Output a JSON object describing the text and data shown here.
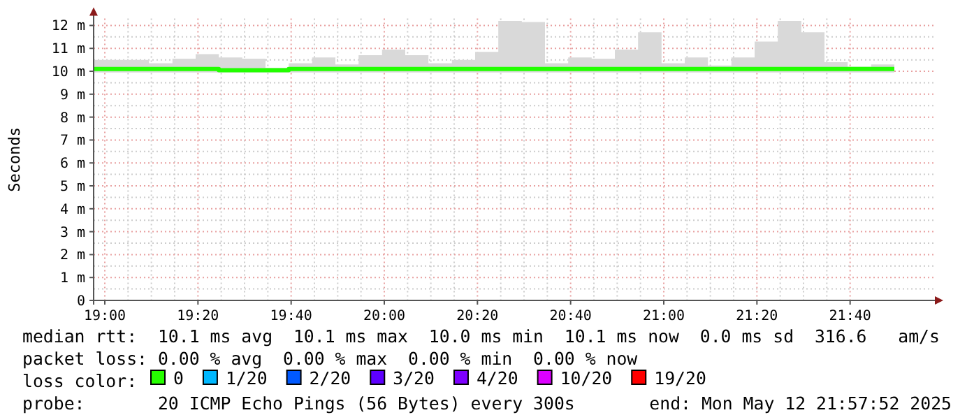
{
  "chart_data": {
    "type": "step",
    "ylabel": "Seconds",
    "x": [
      18.96,
      19.075,
      19.158,
      19.242,
      19.325,
      19.408,
      19.492,
      19.575,
      19.658,
      19.742,
      19.825,
      19.908,
      19.992,
      20.075,
      20.158,
      20.242,
      20.325,
      20.408,
      20.492,
      20.575,
      20.658,
      20.742,
      20.825,
      20.908,
      20.992,
      21.075,
      21.158,
      21.242,
      21.325,
      21.408,
      21.492,
      21.575,
      21.658,
      21.742,
      21.825
    ],
    "series": [
      {
        "color": "#22ff00",
        "values": [
          10.1,
          10.1,
          10.1,
          10.1,
          10.1,
          10.05,
          10.05,
          10.05,
          10.1,
          10.1,
          10.1,
          10.1,
          10.1,
          10.1,
          10.1,
          10.1,
          10.1,
          10.1,
          10.1,
          10.1,
          10.1,
          10.1,
          10.1,
          10.1,
          10.1,
          10.1,
          10.1,
          10.1,
          10.1,
          10.1,
          10.1,
          10.1,
          10.1,
          10.1,
          10.1
        ],
        "lower": [
          9.95,
          9.95,
          9.95,
          9.95,
          9.95,
          9.95,
          9.95,
          9.95,
          9.95,
          9.95,
          9.95,
          9.95,
          9.95,
          9.95,
          9.95,
          9.95,
          9.95,
          9.95,
          9.95,
          9.95,
          9.95,
          9.95,
          9.95,
          9.95,
          9.95,
          9.95,
          9.95,
          9.95,
          9.95,
          9.95,
          9.95,
          9.95,
          9.95,
          9.95,
          9.95
        ],
        "upper": [
          10.5,
          10.5,
          10.35,
          10.55,
          10.75,
          10.6,
          10.55,
          10.15,
          10.35,
          10.6,
          10.3,
          10.7,
          10.95,
          10.7,
          10.35,
          10.5,
          10.85,
          12.2,
          12.15,
          10.35,
          10.6,
          10.55,
          10.95,
          11.7,
          10.35,
          10.6,
          10.25,
          10.6,
          11.3,
          12.2,
          11.7,
          10.4,
          10.2,
          10.3,
          10.3
        ]
      }
    ],
    "xlim": [
      18.96,
      21.965
    ],
    "xticks": [
      {
        "value": 19,
        "label": "19:00"
      },
      {
        "value": 19.3333,
        "label": "19:20"
      },
      {
        "value": 19.6667,
        "label": "19:40"
      },
      {
        "value": 20,
        "label": "20:00"
      },
      {
        "value": 20.3333,
        "label": "20:20"
      },
      {
        "value": 20.6667,
        "label": "20:40"
      },
      {
        "value": 21,
        "label": "21:00"
      },
      {
        "value": 21.3333,
        "label": "21:20"
      },
      {
        "value": 21.6667,
        "label": "21:40"
      }
    ],
    "ylim": [
      0,
      12.3
    ],
    "yticks": [
      0,
      {
        "value": 1,
        "label": "1 m"
      },
      {
        "value": 2,
        "label": "2 m"
      },
      {
        "value": 3,
        "label": "3 m"
      },
      {
        "value": 4,
        "label": "4 m"
      },
      {
        "value": 5,
        "label": "5 m"
      },
      {
        "value": 6,
        "label": "6 m"
      },
      {
        "value": 7,
        "label": "7 m"
      },
      {
        "value": 8,
        "label": "8 m"
      },
      {
        "value": 9,
        "label": "9 m"
      },
      {
        "value": 10,
        "label": "10 m"
      },
      {
        "value": 11,
        "label": "11 m"
      },
      {
        "value": 12,
        "label": "12 m"
      }
    ],
    "grid": true,
    "annotations": [
      "median rtt:  10.1 ms avg  10.1 ms max  10.0 ms min  10.1 ms now  0.0 ms sd  316.6   am/s",
      "packet loss: 0.00 % avg  0.00 % max  0.00 % min  0.00 % now",
      "loss color:",
      "0",
      "1/20",
      "2/20",
      "3/20",
      "4/20",
      "10/20",
      "19/20",
      "probe:       20 ICMP Echo Pings (56 Bytes) every 300s",
      "end: Mon May 12 21:57:52 2025"
    ]
  }
}
